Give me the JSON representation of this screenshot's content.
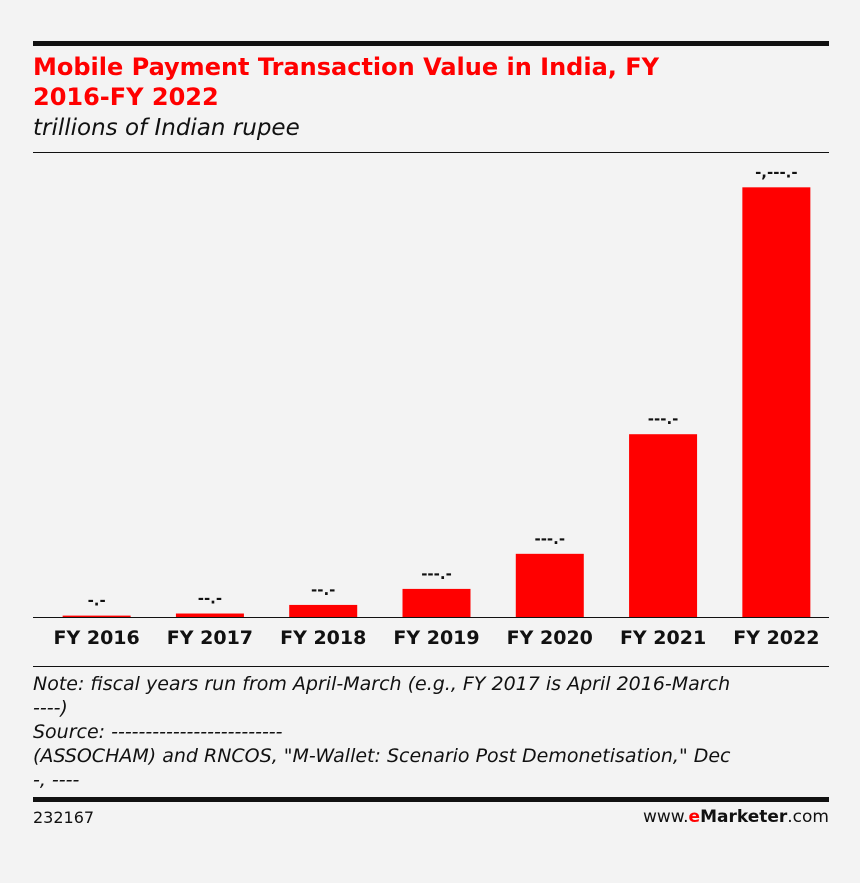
{
  "header": {
    "title_line1": "Mobile Payment Transaction Value in India, FY",
    "title_line2": "2016-FY 2022",
    "subtitle": "trillions of Indian rupee"
  },
  "chart_data": {
    "type": "bar",
    "title": "Mobile Payment Transaction Value in India, FY 2016-FY 2022",
    "subtitle": "trillions of Indian rupee",
    "categories": [
      "FY 2016",
      "FY 2017",
      "FY 2018",
      "FY 2019",
      "FY 2020",
      "FY 2021",
      "FY 2022"
    ],
    "values": [
      0.6,
      1.5,
      5.2,
      12.1,
      27.2,
      78.7,
      185.0
    ],
    "data_labels": [
      "-.-",
      "--.-",
      "--.-",
      "---.-",
      "---.-",
      "---.-",
      "-,---.-"
    ],
    "ylim": [
      0,
      186
    ],
    "bar_color": "#ff0000",
    "grid": false,
    "legend": "none"
  },
  "notes": {
    "line1": "Note: fiscal years run from April-March (e.g., FY 2017 is April 2016-March",
    "line2": "----)",
    "line3": "Source: -------------------------",
    "line4": "(ASSOCHAM) and RNCOS, \"M-Wallet: Scenario Post Demonetisation,\" Dec",
    "line5": "-, ----"
  },
  "footer": {
    "chart_id": "232167",
    "brand_prefix": "www.",
    "brand_e": "e",
    "brand_name": "Marketer",
    "brand_suffix": ".com"
  }
}
